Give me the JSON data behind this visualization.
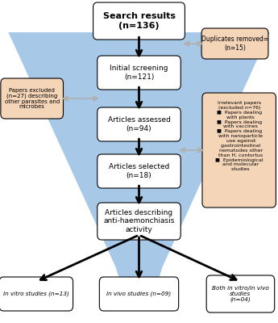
{
  "background_color": "#ffffff",
  "funnel_color": "#a8c8e8",
  "box_fill_color": "#ffffff",
  "box_edge_color": "#000000",
  "side_box_fill_color": "#f5d5b8",
  "side_box_edge_color": "#000000",
  "title_box": "Search results\n(n=136)",
  "main_boxes": [
    "Initial screening\n(n=121)",
    "Articles assessed\n(n=94)",
    "Articles selected\n(n=18)",
    "Articles describing\nanti-haemonchiasis\nactivity"
  ]
}
